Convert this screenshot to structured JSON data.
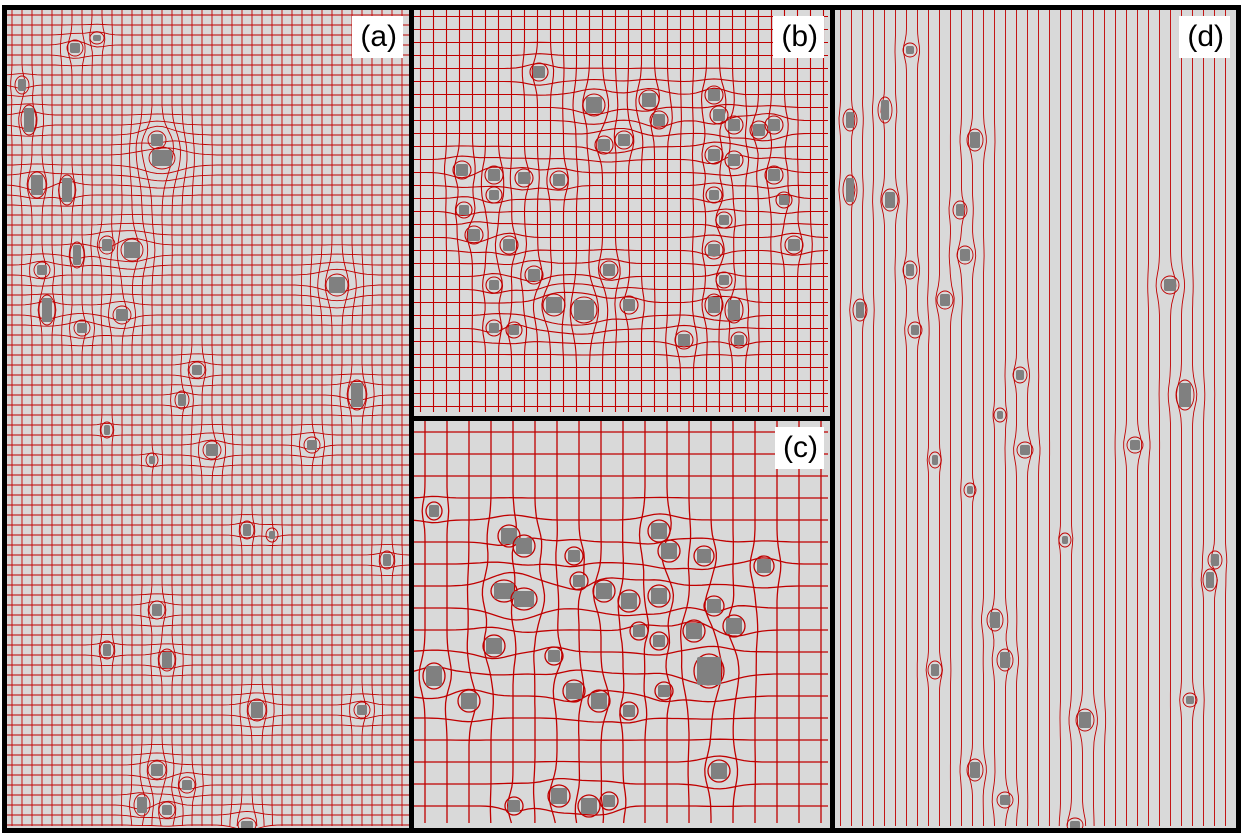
{
  "panels": {
    "a": {
      "label": "(a)"
    },
    "b": {
      "label": "(b)"
    },
    "c": {
      "label": "(c)"
    },
    "d": {
      "label": "(d)"
    }
  },
  "colors": {
    "background": "#d9d9d9",
    "grid_lines": "#c00000",
    "obstacles": "#808080",
    "frame": "#000000"
  }
}
